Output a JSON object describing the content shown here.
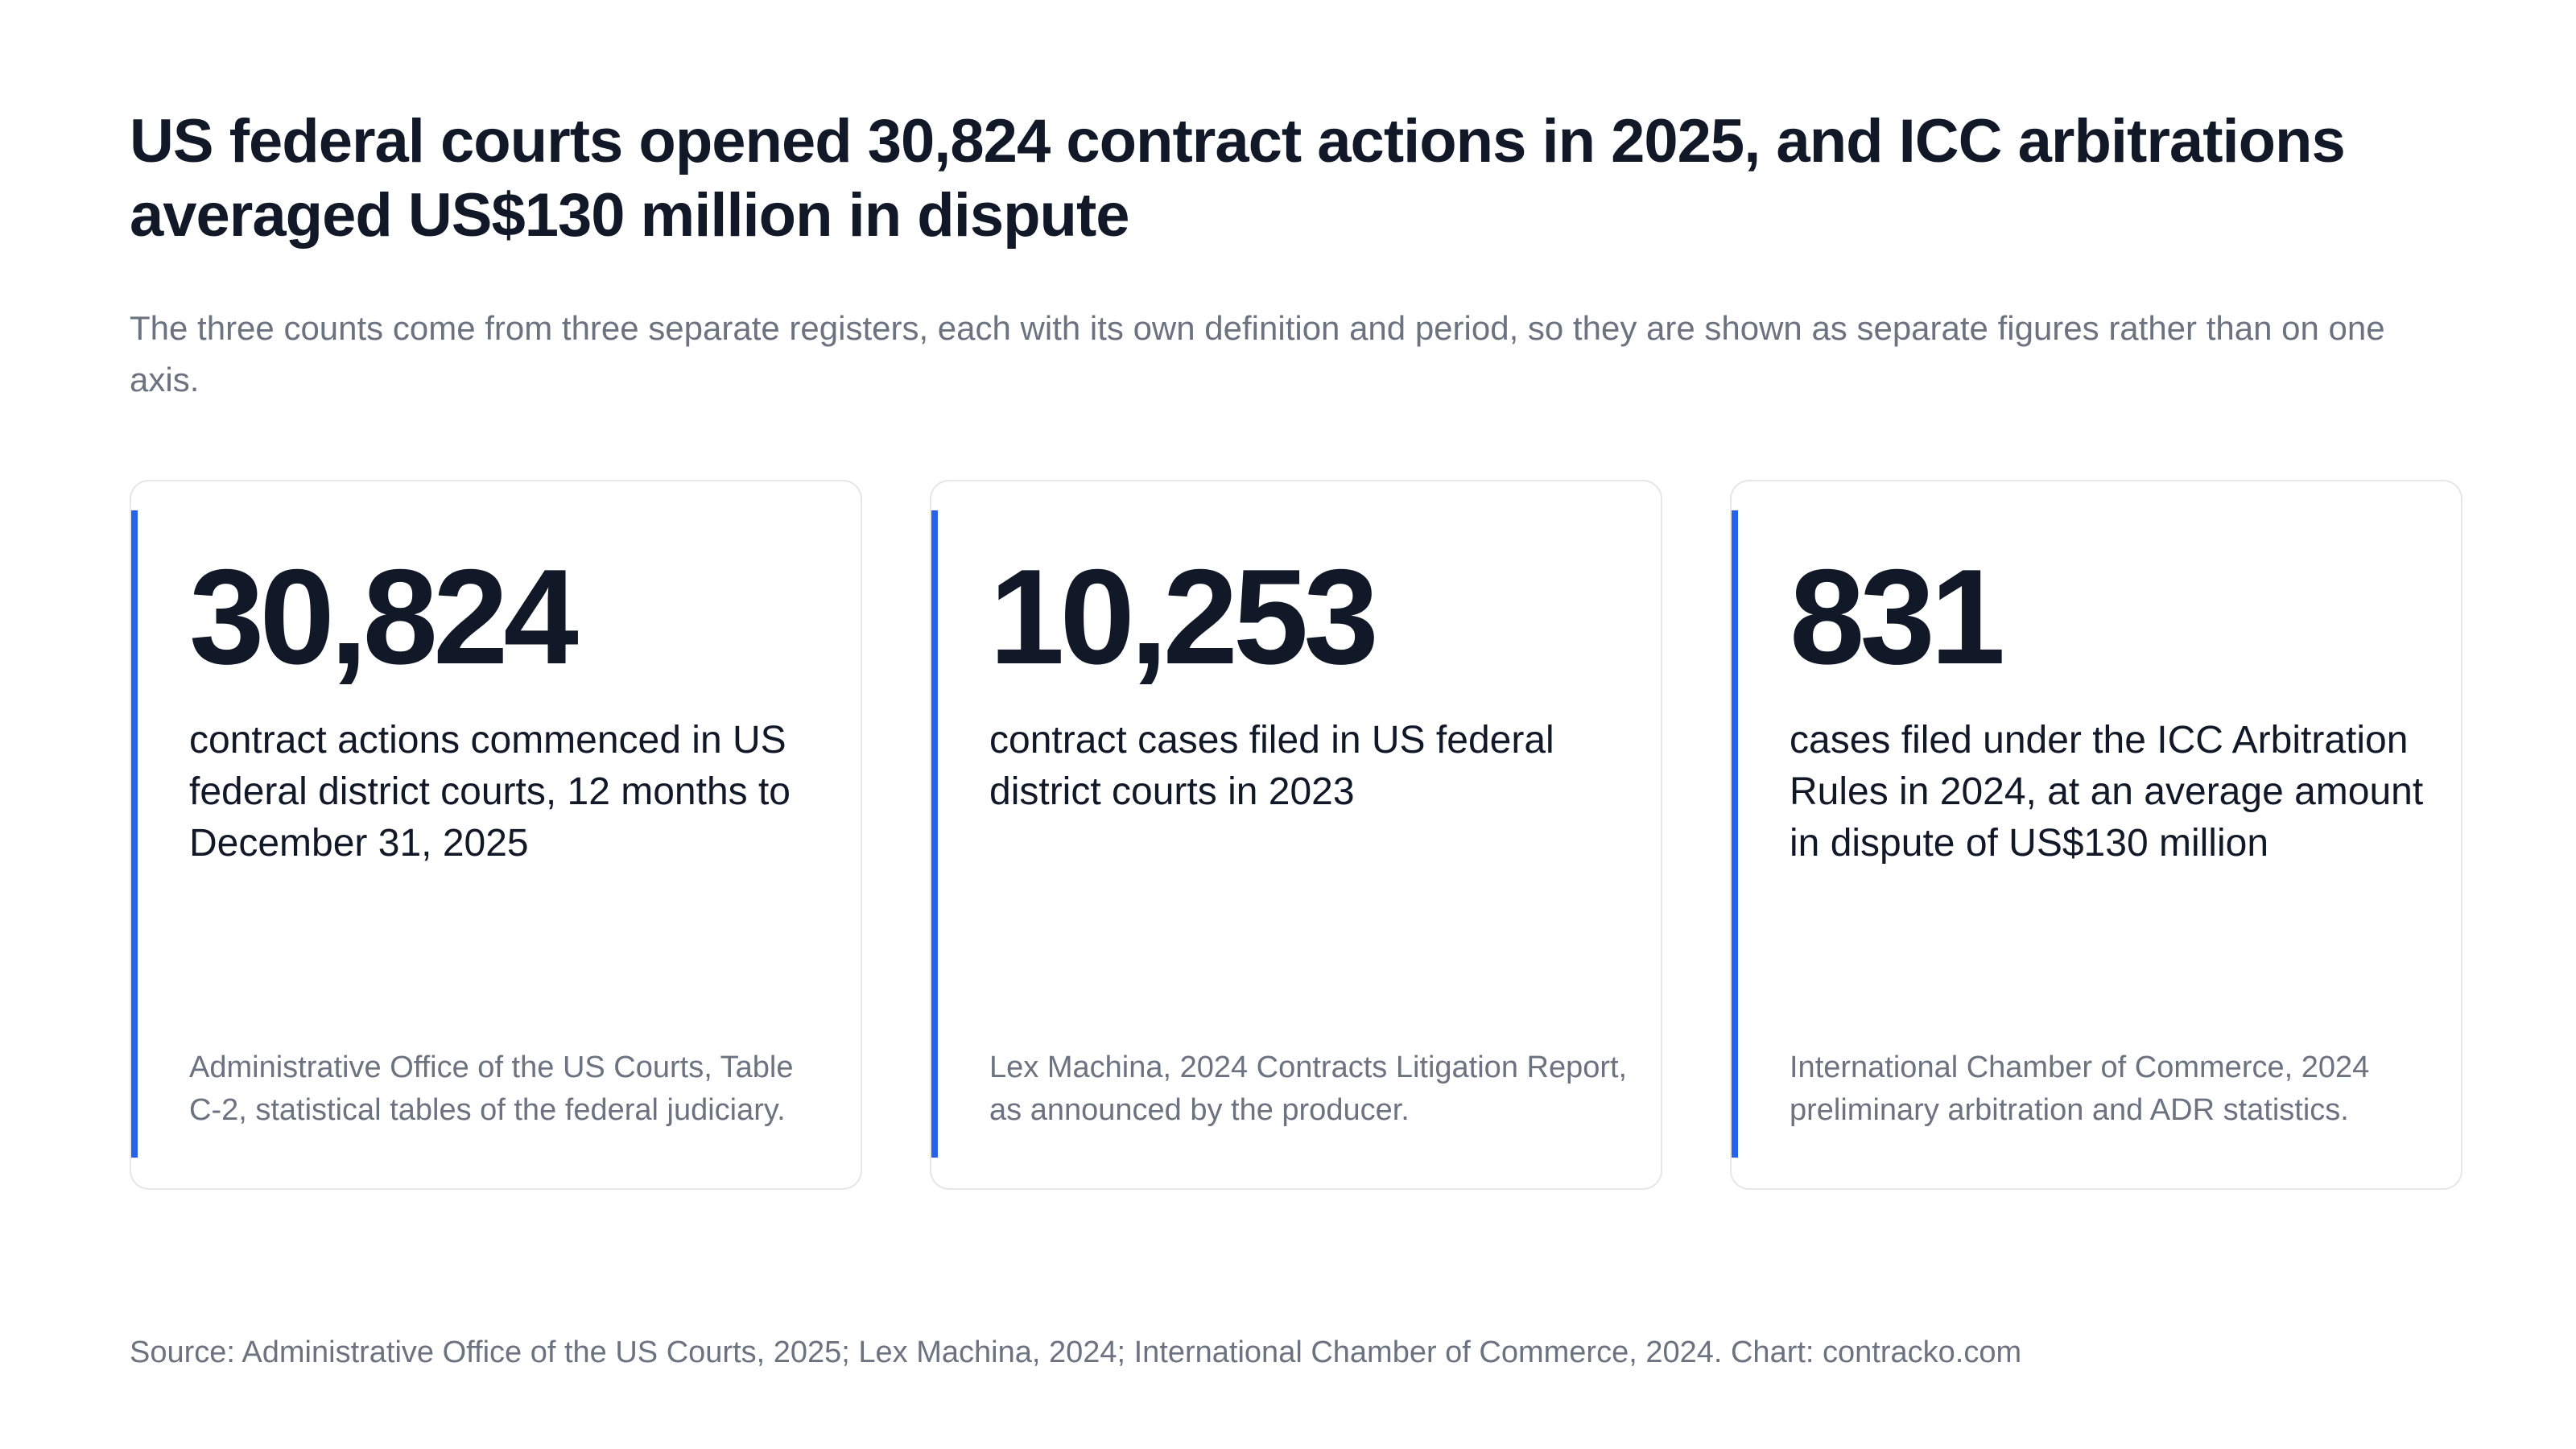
{
  "headline": "US federal courts opened 30,824 contract actions in 2025, and ICC arbitrations averaged US$130 million in dispute",
  "subtitle": "The three counts come from three separate registers, each with its own definition and period, so they are shown as separate figures rather than on one axis.",
  "chart_data": {
    "type": "table",
    "cards": [
      {
        "value": 30824,
        "value_label": "30,824",
        "description": "contract actions commenced in US federal district courts, 12 months to December 31, 2025",
        "source": "Administrative Office of the US Courts, Table C-2, statistical tables of the federal judiciary."
      },
      {
        "value": 10253,
        "value_label": "10,253",
        "description": "contract cases filed in US federal district courts in 2023",
        "source": "Lex Machina, 2024 Contracts Litigation Report, as announced by the producer."
      },
      {
        "value": 831,
        "value_label": "831",
        "description": "cases filed under the ICC Arbitration Rules in 2024, at an average amount in dispute of US$130 million",
        "source": "International Chamber of Commerce, 2024 preliminary arbitration and ADR statistics."
      }
    ]
  },
  "footer": "Source: Administrative Office of the US Courts, 2025; Lex Machina, 2024; International Chamber of Commerce, 2024. Chart: contracko.com",
  "colors": {
    "accent": "#2563eb",
    "text": "#111827",
    "muted": "#6b7280",
    "border": "#e5e7eb"
  }
}
